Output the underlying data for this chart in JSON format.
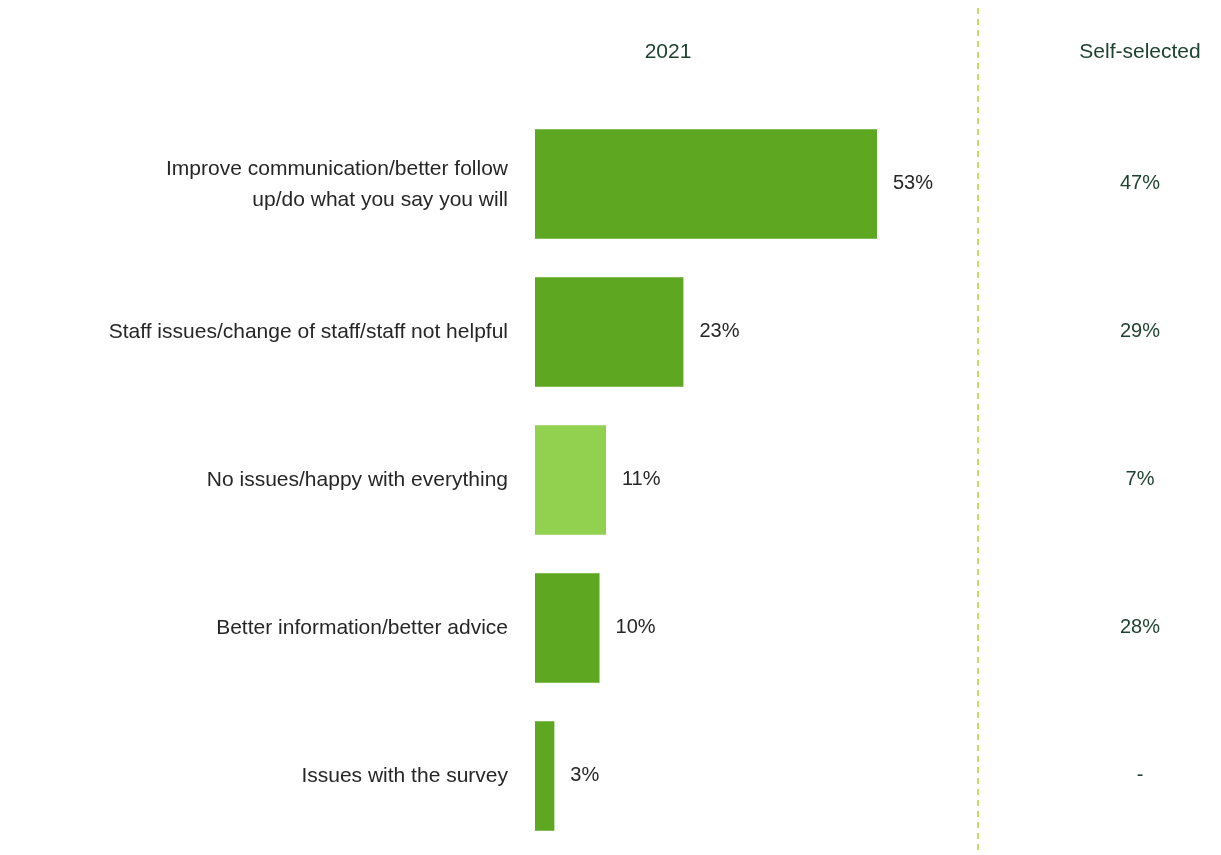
{
  "chart_data": {
    "type": "bar",
    "orientation": "horizontal",
    "categories": [
      "Improve communication/better follow up/do what you say you will",
      "Staff issues/change of staff/staff not helpful",
      "No issues/happy with everything",
      "Better information/better advice",
      "Issues with the survey"
    ],
    "series": [
      {
        "name": "2021",
        "colors": [
          "#5ea821",
          "#5ea821",
          "#92d050",
          "#5ea821",
          "#5ea821"
        ],
        "values": [
          53,
          23,
          11,
          10,
          3
        ],
        "value_labels": [
          "53%",
          "23%",
          "11%",
          "10%",
          "3%"
        ]
      }
    ],
    "annotations": [
      "Self-selected",
      "47%",
      "29%",
      "7%",
      "28%",
      "-"
    ]
  }
}
